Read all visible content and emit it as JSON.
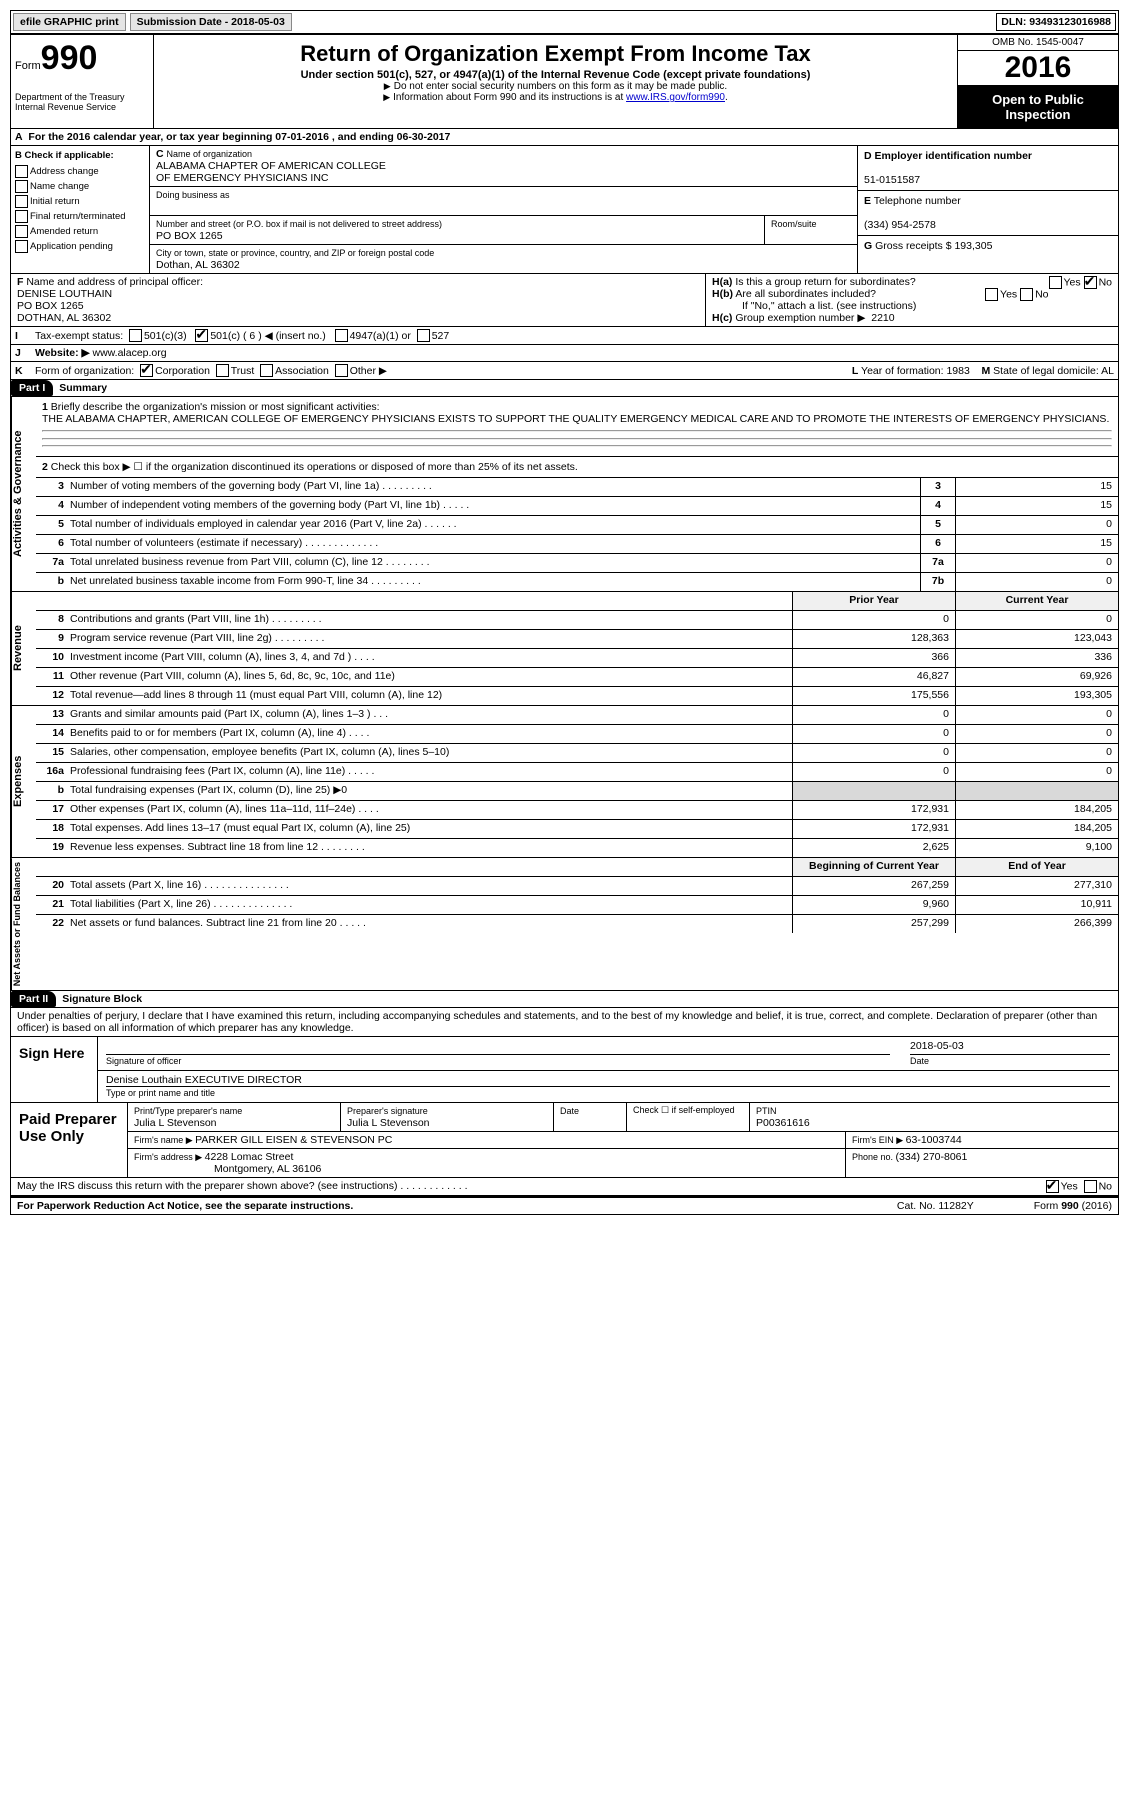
{
  "topbar": {
    "efile": "efile GRAPHIC print",
    "subdate_label": "Submission Date - ",
    "subdate": "2018-05-03",
    "dln_label": "DLN: ",
    "dln": "93493123016988"
  },
  "header": {
    "form_word": "Form",
    "form_no": "990",
    "title": "Return of Organization Exempt From Income Tax",
    "subtitle": "Under section 501(c), 527, or 4947(a)(1) of the Internal Revenue Code (except private foundations)",
    "note1": "Do not enter social security numbers on this form as it may be made public.",
    "note2_pre": "Information about Form 990 and its instructions is at ",
    "note2_link": "www.IRS.gov/form990",
    "omb": "OMB No. 1545-0047",
    "year": "2016",
    "open": "Open to Public Inspection",
    "dept": "Department of the Treasury Internal Revenue Service"
  },
  "rowA": "For the 2016 calendar year, or tax year beginning 07-01-2016   , and ending 06-30-2017",
  "sectionB": {
    "header": "Check if applicable:",
    "opts": [
      "Address change",
      "Name change",
      "Initial return",
      "Final return/terminated",
      "Amended return",
      "Application pending"
    ]
  },
  "sectionC": {
    "name_label": "Name of organization",
    "name1": "ALABAMA CHAPTER OF AMERICAN COLLEGE",
    "name2": "OF EMERGENCY PHYSICIANS INC",
    "dba_label": "Doing business as",
    "addr_label": "Number and street (or P.O. box if mail is not delivered to street address)",
    "room_label": "Room/suite",
    "addr": "PO BOX 1265",
    "city_label": "City or town, state or province, country, and ZIP or foreign postal code",
    "city": "Dothan, AL  36302"
  },
  "sectionD": {
    "label": "Employer identification number",
    "val": "51-0151587"
  },
  "sectionE": {
    "label": "Telephone number",
    "val": "(334) 954-2578"
  },
  "sectionG": {
    "label": "Gross receipts $ ",
    "val": "193,305"
  },
  "sectionF": {
    "label": "Name and address of principal officer:",
    "name": "DENISE LOUTHAIN",
    "addr1": "PO BOX 1265",
    "addr2": "DOTHAN, AL  36302"
  },
  "sectionH": {
    "a": "Is this a group return for subordinates?",
    "b": "Are all subordinates included?",
    "b_note": "If \"No,\" attach a list. (see instructions)",
    "c_label": "Group exemption number ▶",
    "c_val": "2210"
  },
  "rowI": {
    "label": "Tax-exempt status:",
    "opt1": "501(c)(3)",
    "opt2": "501(c) ( 6 ) ◀ (insert no.)",
    "opt3": "4947(a)(1) or",
    "opt4": "527"
  },
  "rowJ": {
    "label": "Website: ▶",
    "val": "www.alacep.org"
  },
  "rowK": {
    "label": "Form of organization:",
    "opts": [
      "Corporation",
      "Trust",
      "Association",
      "Other ▶"
    ]
  },
  "rowL": {
    "label": "Year of formation: ",
    "val": "1983"
  },
  "rowM": {
    "label": "State of legal domicile: ",
    "val": "AL"
  },
  "part1": {
    "badge": "Part I",
    "title": "Summary"
  },
  "mission": {
    "q": "Briefly describe the organization's mission or most significant activities:",
    "text": "THE ALABAMA CHAPTER, AMERICAN COLLEGE OF EMERGENCY PHYSICIANS EXISTS TO SUPPORT THE QUALITY EMERGENCY MEDICAL CARE AND TO PROMOTE THE INTERESTS OF EMERGENCY PHYSICIANS."
  },
  "line2": "Check this box ▶ ☐  if the organization discontinued its operations or disposed of more than 25% of its net assets.",
  "gov_lines": [
    {
      "n": "3",
      "desc": "Number of voting members of the governing body (Part VI, line 1a)   .    .    .    .    .    .    .    .    .",
      "box": "3",
      "val": "15"
    },
    {
      "n": "4",
      "desc": "Number of independent voting members of the governing body (Part VI, line 1b)   .    .    .    .    .",
      "box": "4",
      "val": "15"
    },
    {
      "n": "5",
      "desc": "Total number of individuals employed in calendar year 2016 (Part V, line 2a)   .    .    .    .    .    .",
      "box": "5",
      "val": "0"
    },
    {
      "n": "6",
      "desc": "Total number of volunteers (estimate if necessary)   .    .    .    .    .    .    .    .    .    .    .    .    .",
      "box": "6",
      "val": "15"
    },
    {
      "n": "7a",
      "desc": "Total unrelated business revenue from Part VIII, column (C), line 12   .    .    .    .    .    .    .    .",
      "box": "7a",
      "val": "0"
    },
    {
      "n": "b",
      "desc": "Net unrelated business taxable income from Form 990-T, line 34   .    .    .    .    .    .    .    .    .",
      "box": "7b",
      "val": "0"
    }
  ],
  "hdr_prior": "Prior Year",
  "hdr_curr": "Current Year",
  "rev_lines": [
    {
      "n": "8",
      "desc": "Contributions and grants (Part VIII, line 1h)   .    .    .    .    .    .    .    .    .",
      "p": "0",
      "c": "0"
    },
    {
      "n": "9",
      "desc": "Program service revenue (Part VIII, line 2g)   .    .    .    .    .    .    .    .    .",
      "p": "128,363",
      "c": "123,043"
    },
    {
      "n": "10",
      "desc": "Investment income (Part VIII, column (A), lines 3, 4, and 7d )   .    .    .    .",
      "p": "366",
      "c": "336"
    },
    {
      "n": "11",
      "desc": "Other revenue (Part VIII, column (A), lines 5, 6d, 8c, 9c, 10c, and 11e)",
      "p": "46,827",
      "c": "69,926"
    },
    {
      "n": "12",
      "desc": "Total revenue—add lines 8 through 11 (must equal Part VIII, column (A), line 12)",
      "p": "175,556",
      "c": "193,305"
    }
  ],
  "exp_lines": [
    {
      "n": "13",
      "desc": "Grants and similar amounts paid (Part IX, column (A), lines 1–3 )   .    .    .",
      "p": "0",
      "c": "0"
    },
    {
      "n": "14",
      "desc": "Benefits paid to or for members (Part IX, column (A), line 4)   .    .    .    .",
      "p": "0",
      "c": "0"
    },
    {
      "n": "15",
      "desc": "Salaries, other compensation, employee benefits (Part IX, column (A), lines 5–10)",
      "p": "0",
      "c": "0"
    },
    {
      "n": "16a",
      "desc": "Professional fundraising fees (Part IX, column (A), line 11e)   .    .    .    .    .",
      "p": "0",
      "c": "0"
    },
    {
      "n": "b",
      "desc": "Total fundraising expenses (Part IX, column (D), line 25) ▶0",
      "p": "",
      "c": "",
      "shade": true
    },
    {
      "n": "17",
      "desc": "Other expenses (Part IX, column (A), lines 11a–11d, 11f–24e)   .    .    .    .",
      "p": "172,931",
      "c": "184,205"
    },
    {
      "n": "18",
      "desc": "Total expenses. Add lines 13–17 (must equal Part IX, column (A), line 25)",
      "p": "172,931",
      "c": "184,205"
    },
    {
      "n": "19",
      "desc": "Revenue less expenses. Subtract line 18 from line 12 .    .    .    .    .    .    .    .",
      "p": "2,625",
      "c": "9,100"
    }
  ],
  "hdr_begin": "Beginning of Current Year",
  "hdr_end": "End of Year",
  "net_lines": [
    {
      "n": "20",
      "desc": "Total assets (Part X, line 16)   .    .    .    .    .    .    .    .    .    .    .    .    .    .    .",
      "p": "267,259",
      "c": "277,310"
    },
    {
      "n": "21",
      "desc": "Total liabilities (Part X, line 26)   .    .    .    .    .    .    .    .    .    .    .    .    .    .",
      "p": "9,960",
      "c": "10,911"
    },
    {
      "n": "22",
      "desc": "Net assets or fund balances. Subtract line 21 from line 20   .    .    .    .    .",
      "p": "257,299",
      "c": "266,399"
    }
  ],
  "part2": {
    "badge": "Part II",
    "title": "Signature Block"
  },
  "penalties": "Under penalties of perjury, I declare that I have examined this return, including accompanying schedules and statements, and to the best of my knowledge and belief, it is true, correct, and complete. Declaration of preparer (other than officer) is based on all information of which preparer has any knowledge.",
  "sign": {
    "here": "Sign Here",
    "sig_officer": "Signature of officer",
    "date_label": "Date",
    "date": "2018-05-03",
    "name": "Denise Louthain  EXECUTIVE DIRECTOR",
    "name_label": "Type or print name and title"
  },
  "prep": {
    "title": "Paid Preparer Use Only",
    "name_label": "Print/Type preparer's name",
    "name": "Julia L Stevenson",
    "sig_label": "Preparer's signature",
    "sig": "Julia L Stevenson",
    "date_label": "Date",
    "check_label": "Check ☐ if self-employed",
    "ptin_label": "PTIN",
    "ptin": "P00361616",
    "firm_label": "Firm's name    ▶ ",
    "firm": "PARKER GILL EISEN & STEVENSON PC",
    "ein_label": "Firm's EIN ▶ ",
    "ein": "63-1003744",
    "addr_label": "Firm's address ▶ ",
    "addr1": "4228 Lomac Street",
    "addr2": "Montgomery, AL  36106",
    "phone_label": "Phone no. ",
    "phone": "(334) 270-8061"
  },
  "discuss": "May the IRS discuss this return with the preparer shown above? (see instructions)   .    .    .    .    .    .    .    .    .    .    .    .",
  "footer": {
    "left": "For Paperwork Reduction Act Notice, see the separate instructions.",
    "mid": "Cat. No. 11282Y",
    "right": "Form 990 (2016)"
  }
}
